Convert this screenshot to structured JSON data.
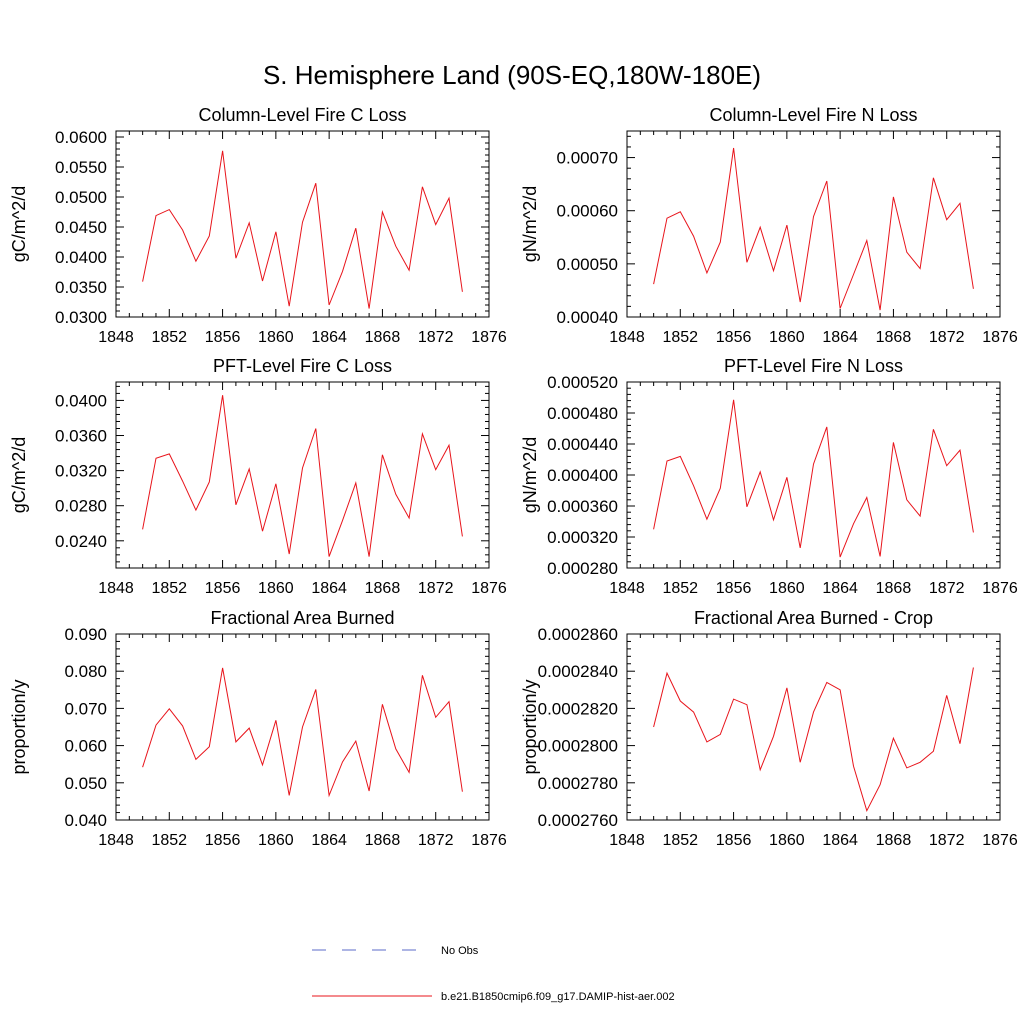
{
  "figure_title": "S. Hemisphere Land (90S-EQ,180W-180E)",
  "series_color": "#e8141b",
  "obs_color": "#5b6bc8",
  "legend": {
    "obs_label": "No Obs",
    "model_label": "b.e21.B1850cmip6.f09_g17.DAMIP-hist-aer.002"
  },
  "chart_data": [
    {
      "type": "line",
      "title": "Column-Level Fire C Loss",
      "xlabel": "",
      "ylabel": "gC/m^2/d",
      "xlim": [
        1848,
        1876
      ],
      "ylim": [
        0.03,
        0.061
      ],
      "x_ticks": [
        "1848",
        "1852",
        "1856",
        "1860",
        "1864",
        "1868",
        "1872",
        "1876"
      ],
      "y_ticks": [
        "0.0300",
        "0.0350",
        "0.0400",
        "0.0450",
        "0.0500",
        "0.0550",
        "0.0600"
      ],
      "x": [
        1850,
        1851,
        1852,
        1853,
        1854,
        1855,
        1856,
        1857,
        1858,
        1859,
        1860,
        1861,
        1862,
        1863,
        1864,
        1865,
        1866,
        1867,
        1868,
        1869,
        1870,
        1871,
        1872,
        1873,
        1874
      ],
      "series": [
        {
          "values": [
            0.0359,
            0.0469,
            0.0479,
            0.0445,
            0.0393,
            0.0435,
            0.0577,
            0.0398,
            0.0457,
            0.036,
            0.0442,
            0.0318,
            0.0458,
            0.0523,
            0.032,
            0.0376,
            0.0448,
            0.0314,
            0.0475,
            0.0418,
            0.0378,
            0.0517,
            0.0454,
            0.0498,
            0.0342
          ]
        }
      ]
    },
    {
      "type": "line",
      "title": "Column-Level Fire N Loss",
      "xlabel": "",
      "ylabel": "gN/m^2/d",
      "xlim": [
        1848,
        1876
      ],
      "ylim": [
        0.0004,
        0.00075
      ],
      "x_ticks": [
        "1848",
        "1852",
        "1856",
        "1860",
        "1864",
        "1868",
        "1872",
        "1876"
      ],
      "y_ticks": [
        "0.00040",
        "0.00050",
        "0.00060",
        "0.00070"
      ],
      "x": [
        1850,
        1851,
        1852,
        1853,
        1854,
        1855,
        1856,
        1857,
        1858,
        1859,
        1860,
        1861,
        1862,
        1863,
        1864,
        1865,
        1866,
        1867,
        1868,
        1869,
        1870,
        1871,
        1872,
        1873,
        1874
      ],
      "series": [
        {
          "values": [
            0.000462,
            0.000586,
            0.000598,
            0.000552,
            0.000483,
            0.000541,
            0.000718,
            0.000503,
            0.000569,
            0.000487,
            0.000573,
            0.000428,
            0.000589,
            0.000656,
            0.000416,
            0.00048,
            0.000544,
            0.000413,
            0.000626,
            0.000522,
            0.000491,
            0.000662,
            0.000583,
            0.000614,
            0.000453
          ]
        }
      ]
    },
    {
      "type": "line",
      "title": "PFT-Level Fire C Loss",
      "xlabel": "",
      "ylabel": "gC/m^2/d",
      "xlim": [
        1848,
        1876
      ],
      "ylim": [
        0.0209,
        0.0421
      ],
      "x_ticks": [
        "1848",
        "1852",
        "1856",
        "1860",
        "1864",
        "1868",
        "1872",
        "1876"
      ],
      "y_ticks": [
        "0.0240",
        "0.0280",
        "0.0320",
        "0.0360",
        "0.0400"
      ],
      "x": [
        1850,
        1851,
        1852,
        1853,
        1854,
        1855,
        1856,
        1857,
        1858,
        1859,
        1860,
        1861,
        1862,
        1863,
        1864,
        1865,
        1866,
        1867,
        1868,
        1869,
        1870,
        1871,
        1872,
        1873,
        1874
      ],
      "series": [
        {
          "values": [
            0.0253,
            0.0334,
            0.0339,
            0.0308,
            0.0275,
            0.0307,
            0.0406,
            0.0281,
            0.0322,
            0.0251,
            0.0305,
            0.0225,
            0.0323,
            0.0368,
            0.0222,
            0.0263,
            0.0306,
            0.0222,
            0.0338,
            0.0293,
            0.0266,
            0.0362,
            0.0321,
            0.0349,
            0.0245
          ]
        }
      ]
    },
    {
      "type": "line",
      "title": "PFT-Level Fire N Loss",
      "xlabel": "",
      "ylabel": "gN/m^2/d",
      "xlim": [
        1848,
        1876
      ],
      "ylim": [
        0.00028,
        0.00052
      ],
      "x_ticks": [
        "1848",
        "1852",
        "1856",
        "1860",
        "1864",
        "1868",
        "1872",
        "1876"
      ],
      "y_ticks": [
        "0.000280",
        "0.000320",
        "0.000360",
        "0.000400",
        "0.000440",
        "0.000480",
        "0.000520"
      ],
      "x": [
        1850,
        1851,
        1852,
        1853,
        1854,
        1855,
        1856,
        1857,
        1858,
        1859,
        1860,
        1861,
        1862,
        1863,
        1864,
        1865,
        1866,
        1867,
        1868,
        1869,
        1870,
        1871,
        1872,
        1873,
        1874
      ],
      "series": [
        {
          "values": [
            0.00033,
            0.000418,
            0.000424,
            0.000386,
            0.000343,
            0.000383,
            0.000497,
            0.000359,
            0.000404,
            0.000342,
            0.000397,
            0.000306,
            0.000414,
            0.000462,
            0.000294,
            0.000337,
            0.000371,
            0.000295,
            0.000442,
            0.000368,
            0.000347,
            0.000459,
            0.000412,
            0.000432,
            0.000326
          ]
        }
      ]
    },
    {
      "type": "line",
      "title": "Fractional Area Burned",
      "xlabel": "",
      "ylabel": "proportion/y",
      "xlim": [
        1848,
        1876
      ],
      "ylim": [
        0.04,
        0.09
      ],
      "x_ticks": [
        "1848",
        "1852",
        "1856",
        "1860",
        "1864",
        "1868",
        "1872",
        "1876"
      ],
      "y_ticks": [
        "0.040",
        "0.050",
        "0.060",
        "0.070",
        "0.080",
        "0.090"
      ],
      "x": [
        1850,
        1851,
        1852,
        1853,
        1854,
        1855,
        1856,
        1857,
        1858,
        1859,
        1860,
        1861,
        1862,
        1863,
        1864,
        1865,
        1866,
        1867,
        1868,
        1869,
        1870,
        1871,
        1872,
        1873,
        1874
      ],
      "series": [
        {
          "values": [
            0.0542,
            0.0655,
            0.0699,
            0.0653,
            0.0563,
            0.0597,
            0.0809,
            0.061,
            0.0647,
            0.0548,
            0.0668,
            0.0466,
            0.065,
            0.0751,
            0.0466,
            0.0556,
            0.0612,
            0.0478,
            0.0711,
            0.0591,
            0.0528,
            0.0789,
            0.0676,
            0.0718,
            0.0476
          ]
        }
      ]
    },
    {
      "type": "line",
      "title": "Fractional Area Burned - Crop",
      "xlabel": "",
      "ylabel": "proportion/y",
      "xlim": [
        1848,
        1876
      ],
      "ylim": [
        0.000276,
        0.000286
      ],
      "x_ticks": [
        "1848",
        "1852",
        "1856",
        "1860",
        "1864",
        "1868",
        "1872",
        "1876"
      ],
      "y_ticks": [
        "0.0002760",
        "0.0002780",
        "0.0002800",
        "0.0002820",
        "0.0002840",
        "0.0002860"
      ],
      "x": [
        1850,
        1851,
        1852,
        1853,
        1854,
        1855,
        1856,
        1857,
        1858,
        1859,
        1860,
        1861,
        1862,
        1863,
        1864,
        1865,
        1866,
        1867,
        1868,
        1869,
        1870,
        1871,
        1872,
        1873,
        1874
      ],
      "series": [
        {
          "values": [
            0.000281,
            0.0002839,
            0.0002824,
            0.0002818,
            0.0002802,
            0.0002806,
            0.0002825,
            0.0002822,
            0.0002787,
            0.0002805,
            0.0002831,
            0.0002791,
            0.0002818,
            0.0002834,
            0.000283,
            0.0002789,
            0.0002765,
            0.0002779,
            0.0002804,
            0.0002788,
            0.0002791,
            0.0002797,
            0.0002827,
            0.0002801,
            0.0002842
          ]
        }
      ]
    }
  ]
}
